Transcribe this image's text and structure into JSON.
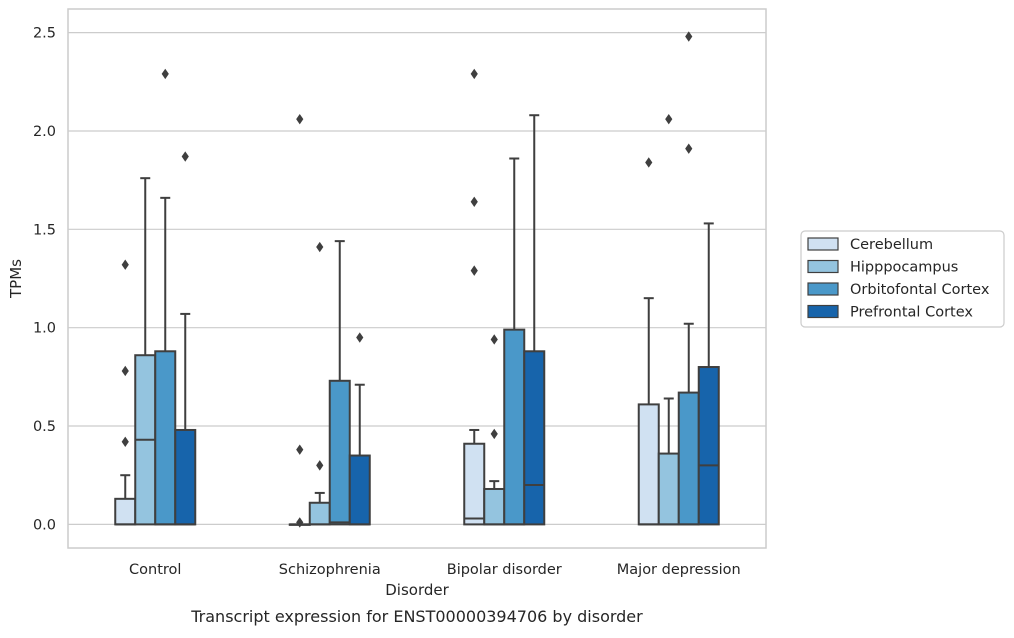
{
  "caption": "Transcript expression for ENST00000394706 by disorder",
  "colors": {
    "Cerebellum": "#d0e1f2",
    "Hipppocampus": "#94c4df",
    "Orbitofontal Cortex": "#4a98c9",
    "Prefrontal Cortex": "#1764ab",
    "box_edge": "#3f3f3f",
    "grid": "#cccccc",
    "frame": "#cccccc"
  },
  "chart_data": {
    "type": "box",
    "title": "",
    "xlabel": "Disorder",
    "ylabel": "TPMs",
    "ylim": [
      -0.12,
      2.62
    ],
    "yticks": [
      0.0,
      0.5,
      1.0,
      1.5,
      2.0,
      2.5
    ],
    "ytick_labels": [
      "0.0",
      "0.5",
      "1.0",
      "1.5",
      "2.0",
      "2.5"
    ],
    "grid": true,
    "legend_position": "right",
    "categories": [
      "Control",
      "Schizophrenia",
      "Bipolar disorder",
      "Major depression"
    ],
    "series": [
      {
        "name": "Cerebellum",
        "boxes": [
          {
            "q1": 0.0,
            "median": 0.0,
            "q3": 0.13,
            "whisker_low": 0.0,
            "whisker_high": 0.25,
            "outliers": [
              0.42,
              0.78,
              1.32
            ]
          },
          {
            "q1": 0.0,
            "median": 0.0,
            "q3": 0.0,
            "whisker_low": 0.0,
            "whisker_high": 0.0,
            "outliers": [
              0.01,
              0.38,
              2.06
            ]
          },
          {
            "q1": 0.0,
            "median": 0.03,
            "q3": 0.41,
            "whisker_low": 0.0,
            "whisker_high": 0.48,
            "outliers": [
              1.29,
              1.64,
              2.29
            ]
          },
          {
            "q1": 0.0,
            "median": 0.0,
            "q3": 0.61,
            "whisker_low": 0.0,
            "whisker_high": 1.15,
            "outliers": [
              1.84
            ]
          }
        ]
      },
      {
        "name": "Hipppocampus",
        "boxes": [
          {
            "q1": 0.0,
            "median": 0.43,
            "q3": 0.86,
            "whisker_low": 0.0,
            "whisker_high": 1.76,
            "outliers": []
          },
          {
            "q1": 0.0,
            "median": 0.0,
            "q3": 0.11,
            "whisker_low": 0.0,
            "whisker_high": 0.16,
            "outliers": [
              0.3,
              1.41
            ]
          },
          {
            "q1": 0.0,
            "median": 0.0,
            "q3": 0.18,
            "whisker_low": 0.0,
            "whisker_high": 0.22,
            "outliers": [
              0.46,
              0.94
            ]
          },
          {
            "q1": 0.0,
            "median": 0.0,
            "q3": 0.36,
            "whisker_low": 0.0,
            "whisker_high": 0.64,
            "outliers": [
              2.06
            ]
          }
        ]
      },
      {
        "name": "Orbitofontal Cortex",
        "boxes": [
          {
            "q1": 0.0,
            "median": 0.0,
            "q3": 0.88,
            "whisker_low": 0.0,
            "whisker_high": 1.66,
            "outliers": [
              2.29
            ]
          },
          {
            "q1": 0.0,
            "median": 0.01,
            "q3": 0.73,
            "whisker_low": 0.0,
            "whisker_high": 1.44,
            "outliers": []
          },
          {
            "q1": 0.0,
            "median": 0.0,
            "q3": 0.99,
            "whisker_low": 0.0,
            "whisker_high": 1.86,
            "outliers": []
          },
          {
            "q1": 0.0,
            "median": 0.0,
            "q3": 0.67,
            "whisker_low": 0.0,
            "whisker_high": 1.02,
            "outliers": [
              1.91,
              2.48
            ]
          }
        ]
      },
      {
        "name": "Prefrontal Cortex",
        "boxes": [
          {
            "q1": 0.0,
            "median": 0.0,
            "q3": 0.48,
            "whisker_low": 0.0,
            "whisker_high": 1.07,
            "outliers": [
              1.87
            ]
          },
          {
            "q1": 0.0,
            "median": 0.0,
            "q3": 0.35,
            "whisker_low": 0.0,
            "whisker_high": 0.71,
            "outliers": [
              0.95
            ]
          },
          {
            "q1": 0.0,
            "median": 0.2,
            "q3": 0.88,
            "whisker_low": 0.0,
            "whisker_high": 2.08,
            "outliers": []
          },
          {
            "q1": 0.0,
            "median": 0.3,
            "q3": 0.8,
            "whisker_low": 0.0,
            "whisker_high": 1.53,
            "outliers": []
          }
        ]
      }
    ]
  }
}
